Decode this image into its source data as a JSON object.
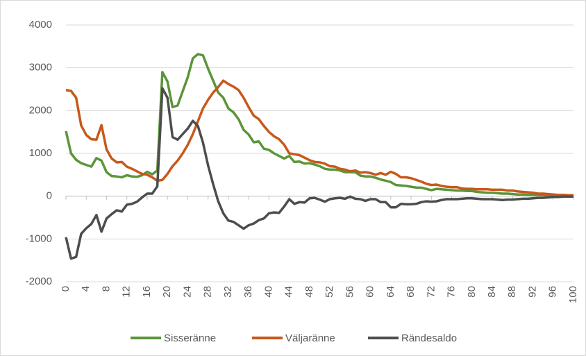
{
  "chart_data": {
    "type": "line",
    "x": [
      0,
      1,
      2,
      3,
      4,
      5,
      6,
      7,
      8,
      9,
      10,
      11,
      12,
      13,
      14,
      15,
      16,
      17,
      18,
      19,
      20,
      21,
      22,
      23,
      24,
      25,
      26,
      27,
      28,
      29,
      30,
      31,
      32,
      33,
      34,
      35,
      36,
      37,
      38,
      39,
      40,
      41,
      42,
      43,
      44,
      45,
      46,
      47,
      48,
      49,
      50,
      51,
      52,
      53,
      54,
      55,
      56,
      57,
      58,
      59,
      60,
      61,
      62,
      63,
      64,
      65,
      66,
      67,
      68,
      69,
      70,
      71,
      72,
      73,
      74,
      75,
      76,
      77,
      78,
      79,
      80,
      81,
      82,
      83,
      84,
      85,
      86,
      87,
      88,
      89,
      90,
      91,
      92,
      93,
      94,
      95,
      96,
      97,
      98,
      99,
      100
    ],
    "xlim": [
      0,
      100
    ],
    "xticks": [
      0,
      4,
      8,
      12,
      16,
      20,
      24,
      28,
      32,
      36,
      40,
      44,
      48,
      52,
      56,
      60,
      64,
      68,
      72,
      76,
      80,
      84,
      88,
      92,
      96,
      100
    ],
    "ylim": [
      -2000,
      4000
    ],
    "yticks": [
      -2000,
      -1000,
      0,
      1000,
      2000,
      3000,
      4000
    ],
    "grid": true,
    "legend": "bottom",
    "series": [
      {
        "name": "Sisseränne",
        "color": "#5b9539",
        "values": [
          1520,
          1000,
          850,
          770,
          730,
          690,
          890,
          830,
          560,
          470,
          460,
          440,
          490,
          460,
          450,
          490,
          570,
          510,
          600,
          2900,
          2680,
          2080,
          2120,
          2450,
          2780,
          3220,
          3320,
          3290,
          2980,
          2700,
          2420,
          2300,
          2050,
          1960,
          1800,
          1550,
          1440,
          1260,
          1280,
          1110,
          1080,
          1000,
          940,
          880,
          940,
          800,
          810,
          760,
          770,
          740,
          700,
          640,
          620,
          620,
          600,
          560,
          560,
          560,
          480,
          460,
          460,
          430,
          390,
          360,
          330,
          260,
          250,
          240,
          220,
          200,
          200,
          170,
          140,
          170,
          160,
          150,
          140,
          130,
          130,
          120,
          120,
          100,
          90,
          80,
          80,
          70,
          60,
          60,
          50,
          40,
          40,
          30,
          30,
          30,
          20,
          20,
          20,
          10,
          10,
          10,
          10
        ]
      },
      {
        "name": "Väljaränne",
        "color": "#c8581a",
        "values": [
          2480,
          2460,
          2300,
          1650,
          1430,
          1330,
          1320,
          1660,
          1090,
          880,
          790,
          800,
          690,
          640,
          580,
          520,
          500,
          440,
          360,
          380,
          520,
          700,
          830,
          1000,
          1200,
          1450,
          1750,
          2050,
          2250,
          2420,
          2550,
          2700,
          2620,
          2560,
          2480,
          2300,
          2080,
          1880,
          1800,
          1640,
          1500,
          1400,
          1330,
          1200,
          1000,
          980,
          960,
          900,
          840,
          800,
          790,
          760,
          700,
          690,
          640,
          620,
          580,
          600,
          550,
          560,
          540,
          500,
          540,
          500,
          570,
          520,
          440,
          440,
          420,
          380,
          340,
          290,
          260,
          270,
          240,
          220,
          210,
          210,
          180,
          170,
          170,
          160,
          160,
          160,
          150,
          150,
          150,
          130,
          130,
          110,
          100,
          90,
          80,
          60,
          60,
          50,
          40,
          30,
          30,
          20,
          20
        ]
      },
      {
        "name": "Rändesaldo",
        "color": "#4d4d4d",
        "values": [
          -960,
          -1460,
          -1420,
          -880,
          -750,
          -650,
          -440,
          -830,
          -520,
          -420,
          -330,
          -360,
          -200,
          -180,
          -130,
          -30,
          60,
          60,
          230,
          2520,
          2300,
          1380,
          1320,
          1450,
          1580,
          1760,
          1640,
          1250,
          720,
          280,
          -120,
          -400,
          -570,
          -600,
          -680,
          -760,
          -680,
          -640,
          -560,
          -520,
          -400,
          -380,
          -390,
          -240,
          -70,
          -180,
          -140,
          -150,
          -50,
          -40,
          -80,
          -130,
          -70,
          -50,
          -40,
          -60,
          -10,
          -60,
          -70,
          -110,
          -70,
          -70,
          -140,
          -140,
          -260,
          -260,
          -180,
          -190,
          -190,
          -180,
          -140,
          -120,
          -130,
          -120,
          -90,
          -70,
          -70,
          -70,
          -60,
          -50,
          -50,
          -60,
          -70,
          -70,
          -70,
          -80,
          -90,
          -80,
          -80,
          -70,
          -60,
          -60,
          -50,
          -40,
          -40,
          -30,
          -20,
          -20,
          -10,
          -10,
          -10
        ]
      }
    ]
  }
}
